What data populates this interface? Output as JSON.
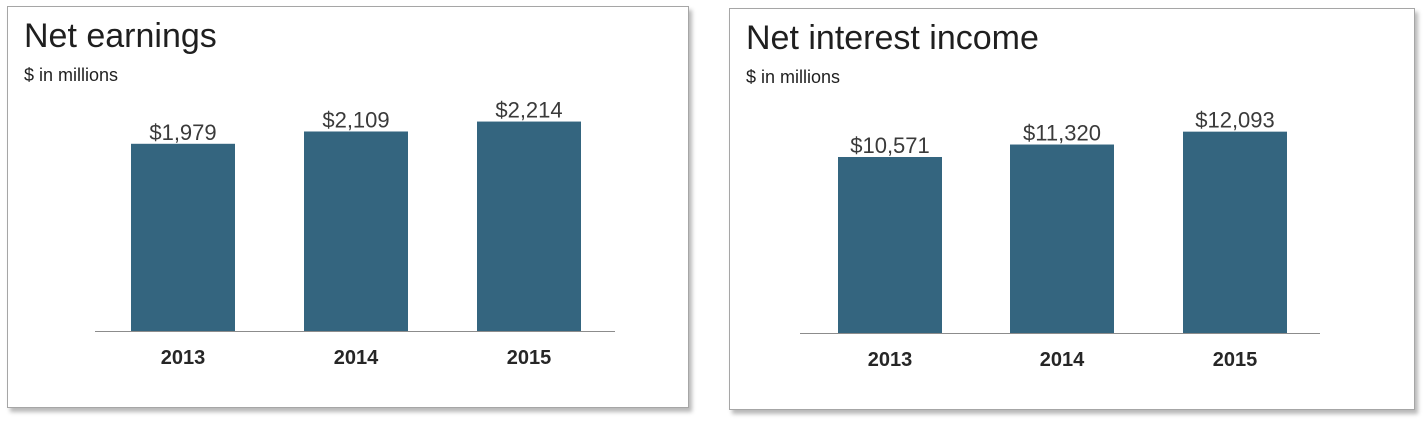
{
  "chart_data": [
    {
      "type": "bar",
      "title": "Net earnings",
      "subtitle": "$ in millions",
      "categories": [
        "2013",
        "2014",
        "2015"
      ],
      "values": [
        1979,
        2109,
        2214
      ],
      "value_labels": [
        "$1,979",
        "$2,109",
        "$2,214"
      ],
      "bar_color": "#34657f",
      "grid": false,
      "legend": "none"
    },
    {
      "type": "bar",
      "title": "Net interest income",
      "subtitle": "$ in millions",
      "categories": [
        "2013",
        "2014",
        "2015"
      ],
      "values": [
        10571,
        11320,
        12093
      ],
      "value_labels": [
        "$10,571",
        "$11,320",
        "$12,093"
      ],
      "bar_color": "#34657f",
      "grid": false,
      "legend": "none"
    }
  ]
}
